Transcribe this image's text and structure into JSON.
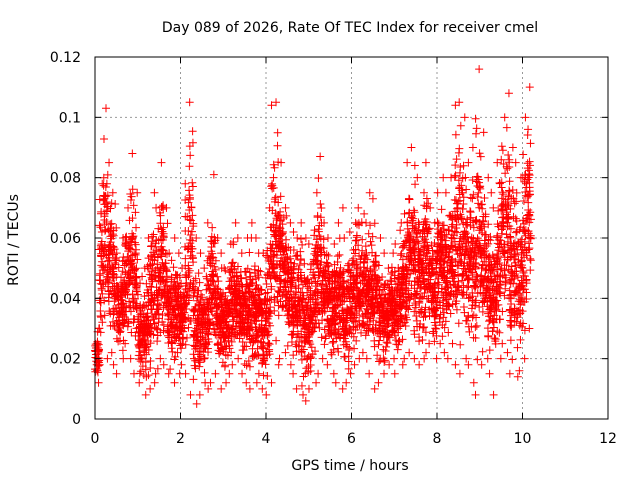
{
  "chart_data": {
    "type": "scatter",
    "title": "Day 089 of 2026, Rate Of TEC Index for receiver cmel",
    "xlabel": "GPS time / hours",
    "ylabel": "ROTI / TECUs",
    "xlim": [
      0,
      12
    ],
    "ylim": [
      0,
      0.12
    ],
    "x_ticks": [
      "0",
      "2",
      "4",
      "6",
      "8",
      "10",
      "12"
    ],
    "y_ticks": [
      "0",
      "0.02",
      "0.04",
      "0.06",
      "0.08",
      "0.1",
      "0.12"
    ],
    "grid": true,
    "legend": "none",
    "marker": "+",
    "color": "#ff0000",
    "series": [
      {
        "x": [
          0.0,
          0.1,
          0.2,
          0.3,
          0.4,
          0.5,
          0.6,
          0.7,
          0.8,
          0.9,
          1.0,
          1.1,
          1.2,
          1.3,
          1.4,
          1.5,
          1.6,
          1.7,
          1.8,
          1.9,
          2.0,
          2.1,
          2.2,
          2.3,
          2.4,
          2.5,
          2.6,
          2.7,
          2.8,
          2.9,
          3.0,
          3.1,
          3.2,
          3.3,
          3.4,
          3.5,
          3.6,
          3.7,
          3.8,
          3.9,
          4.0,
          4.1,
          4.2,
          4.3,
          4.4,
          4.5,
          4.6,
          4.7,
          4.8,
          4.9,
          5.0,
          5.1,
          5.2,
          5.3,
          5.4,
          5.5,
          5.6,
          5.7,
          5.8,
          5.9,
          6.0,
          6.1,
          6.2,
          6.3,
          6.4,
          6.5,
          6.6,
          6.7,
          6.8,
          6.9,
          7.0,
          7.1,
          7.2,
          7.3,
          7.4,
          7.5,
          7.6,
          7.7,
          7.8,
          7.9,
          8.0,
          8.1,
          8.2,
          8.3,
          8.4,
          8.5,
          8.6,
          8.7,
          8.8,
          8.9,
          9.0,
          9.1,
          9.2,
          9.3,
          9.4,
          9.5,
          9.6,
          9.7,
          9.8,
          9.9,
          10.0,
          10.1
        ],
        "low": [
          0.012,
          0.018,
          0.02,
          0.022,
          0.018,
          0.015,
          0.02,
          0.025,
          0.02,
          0.015,
          0.012,
          0.008,
          0.01,
          0.012,
          0.015,
          0.02,
          0.018,
          0.015,
          0.012,
          0.015,
          0.018,
          0.015,
          0.008,
          0.005,
          0.008,
          0.012,
          0.01,
          0.012,
          0.015,
          0.01,
          0.012,
          0.015,
          0.018,
          0.02,
          0.015,
          0.012,
          0.01,
          0.012,
          0.015,
          0.01,
          0.008,
          0.012,
          0.018,
          0.02,
          0.022,
          0.018,
          0.015,
          0.01,
          0.008,
          0.006,
          0.01,
          0.012,
          0.015,
          0.02,
          0.018,
          0.015,
          0.012,
          0.01,
          0.012,
          0.015,
          0.018,
          0.02,
          0.022,
          0.02,
          0.015,
          0.01,
          0.012,
          0.015,
          0.018,
          0.02,
          0.015,
          0.018,
          0.02,
          0.022,
          0.02,
          0.018,
          0.02,
          0.022,
          0.025,
          0.02,
          0.025,
          0.022,
          0.02,
          0.025,
          0.018,
          0.015,
          0.02,
          0.018,
          0.012,
          0.008,
          0.018,
          0.02,
          0.015,
          0.008,
          0.02,
          0.025,
          0.022,
          0.015,
          0.014,
          0.016,
          0.02,
          0.03
        ],
        "high": [
          0.03,
          0.078,
          0.103,
          0.085,
          0.075,
          0.055,
          0.06,
          0.07,
          0.088,
          0.075,
          0.045,
          0.05,
          0.06,
          0.075,
          0.07,
          0.085,
          0.07,
          0.055,
          0.06,
          0.055,
          0.05,
          0.078,
          0.105,
          0.06,
          0.055,
          0.05,
          0.065,
          0.081,
          0.06,
          0.055,
          0.05,
          0.058,
          0.065,
          0.06,
          0.055,
          0.06,
          0.065,
          0.06,
          0.055,
          0.055,
          0.07,
          0.104,
          0.105,
          0.085,
          0.07,
          0.065,
          0.062,
          0.06,
          0.065,
          0.06,
          0.058,
          0.075,
          0.087,
          0.065,
          0.06,
          0.058,
          0.065,
          0.07,
          0.06,
          0.062,
          0.065,
          0.07,
          0.068,
          0.065,
          0.075,
          0.073,
          0.06,
          0.055,
          0.05,
          0.055,
          0.058,
          0.065,
          0.068,
          0.085,
          0.09,
          0.08,
          0.075,
          0.085,
          0.07,
          0.065,
          0.075,
          0.08,
          0.075,
          0.08,
          0.104,
          0.105,
          0.1,
          0.085,
          0.09,
          0.116,
          0.095,
          0.08,
          0.075,
          0.07,
          0.085,
          0.1,
          0.108,
          0.09,
          0.085,
          0.08,
          0.1,
          0.11
        ]
      }
    ]
  }
}
